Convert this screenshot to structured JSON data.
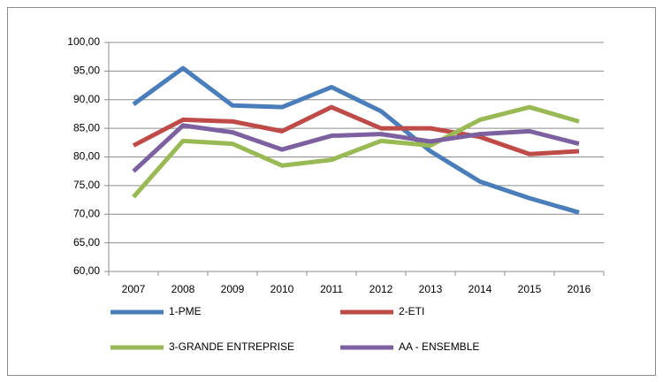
{
  "chart_data": {
    "type": "line",
    "categories": [
      "2007",
      "2008",
      "2009",
      "2010",
      "2011",
      "2012",
      "2013",
      "2014",
      "2015",
      "2016"
    ],
    "series": [
      {
        "name": "1-PME",
        "color": "#4a7ebb",
        "values": [
          89.2,
          95.5,
          89.0,
          88.7,
          92.2,
          88.0,
          81.0,
          75.7,
          72.8,
          70.3
        ]
      },
      {
        "name": "2-ETI",
        "color": "#be4b48",
        "values": [
          82.0,
          86.5,
          86.2,
          84.5,
          88.7,
          85.0,
          85.0,
          83.5,
          80.5,
          81.0
        ]
      },
      {
        "name": "3-GRANDE ENTREPRISE",
        "color": "#98b954",
        "values": [
          73.0,
          82.8,
          82.3,
          78.5,
          79.5,
          82.8,
          82.0,
          86.5,
          88.7,
          86.2
        ]
      },
      {
        "name": "AA - ENSEMBLE",
        "color": "#7d60a0",
        "values": [
          77.5,
          85.5,
          84.3,
          81.3,
          83.7,
          84.0,
          82.7,
          84.0,
          84.5,
          82.3
        ]
      }
    ],
    "ylim": [
      60,
      100
    ],
    "yticks": [
      {
        "value": 60,
        "label": "60,00"
      },
      {
        "value": 65,
        "label": "65,00"
      },
      {
        "value": 70,
        "label": "70,00"
      },
      {
        "value": 75,
        "label": "75,00"
      },
      {
        "value": 80,
        "label": "80,00"
      },
      {
        "value": 85,
        "label": "85,00"
      },
      {
        "value": 90,
        "label": "90,00"
      },
      {
        "value": 95,
        "label": "95,00"
      },
      {
        "value": 100,
        "label": "100,00"
      }
    ],
    "grid": true,
    "legend": "bottom"
  }
}
